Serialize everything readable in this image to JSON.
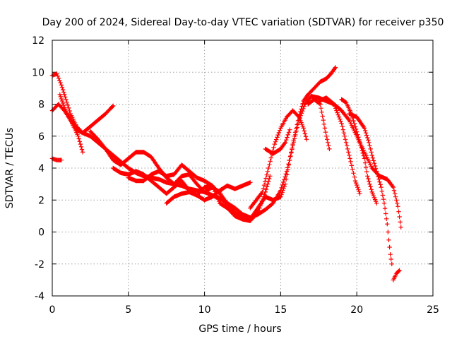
{
  "chart_data": {
    "type": "scatter",
    "title": "Day 200 of 2024, Sidereal Day-to-day VTEC variation (SDTVAR) for receiver p350",
    "xlabel": "GPS time / hours",
    "ylabel": "SDTVAR / TECUs",
    "xlim": [
      0,
      25
    ],
    "ylim": [
      -4,
      12
    ],
    "xticks": [
      "0",
      "5",
      "10",
      "15",
      "20",
      "25"
    ],
    "yticks": [
      "-4",
      "-2",
      "0",
      "2",
      "4",
      "6",
      "8",
      "10",
      "12"
    ],
    "grid": true,
    "marker": "plus",
    "color": "#ff0000",
    "series": [
      {
        "name": "track-a",
        "points": [
          [
            0.0,
            9.8
          ],
          [
            0.3,
            9.9
          ],
          [
            0.6,
            9.2
          ],
          [
            0.9,
            8.3
          ],
          [
            1.2,
            7.4
          ],
          [
            1.6,
            6.6
          ],
          [
            2.0,
            6.2
          ],
          [
            2.5,
            6.0
          ],
          [
            3.0,
            5.6
          ],
          [
            3.5,
            5.2
          ],
          [
            4.0,
            4.8
          ],
          [
            4.5,
            4.4
          ],
          [
            5.0,
            4.0
          ],
          [
            5.5,
            3.7
          ],
          [
            6.0,
            3.5
          ],
          [
            6.5,
            3.4
          ],
          [
            7.0,
            3.3
          ],
          [
            7.5,
            3.1
          ],
          [
            8.0,
            3.0
          ],
          [
            8.5,
            2.9
          ],
          [
            9.0,
            2.7
          ],
          [
            9.5,
            2.6
          ],
          [
            10.0,
            2.5
          ],
          [
            10.5,
            2.3
          ],
          [
            11.0,
            2.1
          ],
          [
            11.5,
            1.8
          ],
          [
            12.0,
            1.5
          ],
          [
            12.5,
            1.1
          ],
          [
            13.0,
            0.9
          ],
          [
            13.5,
            1.1
          ],
          [
            14.0,
            1.4
          ],
          [
            14.5,
            1.8
          ],
          [
            15.0,
            2.6
          ],
          [
            15.4,
            3.8
          ],
          [
            15.8,
            5.4
          ],
          [
            16.2,
            7.0
          ],
          [
            16.6,
            8.0
          ],
          [
            17.0,
            8.5
          ],
          [
            17.5,
            8.4
          ],
          [
            18.0,
            8.2
          ],
          [
            18.5,
            8.0
          ],
          [
            19.0,
            7.6
          ],
          [
            19.5,
            7.0
          ],
          [
            20.0,
            6.0
          ],
          [
            20.5,
            5.0
          ],
          [
            21.0,
            4.0
          ],
          [
            21.5,
            3.5
          ],
          [
            22.0,
            3.3
          ],
          [
            22.4,
            2.8
          ],
          [
            22.7,
            1.6
          ],
          [
            22.9,
            0.3
          ]
        ]
      },
      {
        "name": "track-b",
        "points": [
          [
            0.0,
            7.6
          ],
          [
            0.4,
            8.0
          ],
          [
            0.8,
            7.6
          ],
          [
            1.2,
            7.0
          ],
          [
            1.6,
            6.4
          ],
          [
            2.0,
            6.2
          ],
          [
            2.5,
            6.6
          ],
          [
            3.0,
            7.0
          ],
          [
            3.5,
            7.4
          ],
          [
            3.8,
            7.7
          ],
          [
            4.0,
            7.9
          ]
        ]
      },
      {
        "name": "track-c",
        "points": [
          [
            0.5,
            8.6
          ],
          [
            0.8,
            7.8
          ],
          [
            1.2,
            7.0
          ],
          [
            1.7,
            6.0
          ],
          [
            2.0,
            5.0
          ]
        ]
      },
      {
        "name": "track-d",
        "points": [
          [
            0.0,
            4.6
          ],
          [
            0.3,
            4.5
          ],
          [
            0.6,
            4.5
          ]
        ]
      },
      {
        "name": "track-e",
        "points": [
          [
            2.5,
            6.3
          ],
          [
            3.0,
            5.8
          ],
          [
            3.5,
            5.2
          ],
          [
            4.0,
            4.5
          ],
          [
            4.5,
            4.2
          ],
          [
            5.0,
            4.6
          ],
          [
            5.5,
            5.0
          ],
          [
            6.0,
            5.0
          ],
          [
            6.5,
            4.7
          ],
          [
            7.0,
            4.0
          ],
          [
            7.5,
            3.4
          ],
          [
            8.0,
            3.0
          ],
          [
            8.5,
            3.5
          ],
          [
            9.0,
            3.6
          ],
          [
            9.5,
            3.0
          ],
          [
            10.0,
            2.5
          ],
          [
            10.5,
            2.8
          ],
          [
            11.0,
            2.5
          ],
          [
            11.5,
            1.5
          ],
          [
            12.0,
            1.0
          ],
          [
            12.5,
            0.8
          ],
          [
            13.0,
            0.7
          ],
          [
            13.5,
            1.2
          ],
          [
            14.0,
            2.5
          ],
          [
            14.3,
            3.5
          ]
        ]
      },
      {
        "name": "track-f",
        "points": [
          [
            4.0,
            4.0
          ],
          [
            4.5,
            3.7
          ],
          [
            5.0,
            3.6
          ],
          [
            5.5,
            3.8
          ],
          [
            6.0,
            3.6
          ],
          [
            6.5,
            3.2
          ],
          [
            7.0,
            2.8
          ],
          [
            7.5,
            2.4
          ],
          [
            8.0,
            2.8
          ],
          [
            8.5,
            3.2
          ],
          [
            9.0,
            2.6
          ],
          [
            9.5,
            2.3
          ],
          [
            10.0,
            2.0
          ],
          [
            10.5,
            2.2
          ],
          [
            11.0,
            2.6
          ],
          [
            11.5,
            2.9
          ],
          [
            12.0,
            2.7
          ],
          [
            12.5,
            2.9
          ],
          [
            13.0,
            3.1
          ]
        ]
      },
      {
        "name": "track-g",
        "points": [
          [
            5.0,
            3.4
          ],
          [
            5.5,
            3.2
          ],
          [
            6.0,
            3.2
          ],
          [
            6.5,
            3.6
          ],
          [
            7.0,
            3.8
          ],
          [
            7.5,
            3.5
          ],
          [
            8.0,
            3.6
          ],
          [
            8.5,
            4.2
          ],
          [
            9.0,
            3.8
          ],
          [
            9.5,
            3.4
          ],
          [
            10.0,
            3.2
          ],
          [
            10.5,
            2.9
          ],
          [
            11.0,
            2.4
          ],
          [
            11.5,
            1.8
          ],
          [
            12.0,
            1.2
          ],
          [
            12.5,
            0.8
          ],
          [
            13.0,
            0.8
          ],
          [
            13.5,
            1.5
          ],
          [
            14.0,
            2.2
          ],
          [
            14.5,
            2.0
          ],
          [
            15.0,
            2.2
          ],
          [
            15.3,
            3.0
          ],
          [
            15.6,
            4.5
          ],
          [
            15.9,
            6.0
          ],
          [
            16.2,
            7.2
          ],
          [
            16.5,
            8.2
          ],
          [
            16.8,
            8.6
          ],
          [
            17.2,
            9.0
          ],
          [
            17.6,
            9.4
          ],
          [
            18.0,
            9.6
          ],
          [
            18.3,
            9.9
          ],
          [
            18.6,
            10.3
          ]
        ]
      },
      {
        "name": "track-h",
        "points": [
          [
            7.5,
            1.8
          ],
          [
            8.0,
            2.2
          ],
          [
            8.5,
            2.4
          ],
          [
            9.0,
            2.5
          ],
          [
            9.5,
            2.3
          ],
          [
            10.0,
            2.8
          ],
          [
            10.5,
            2.9
          ],
          [
            11.0,
            1.8
          ],
          [
            11.5,
            1.5
          ],
          [
            12.0,
            1.2
          ],
          [
            12.5,
            0.9
          ]
        ]
      },
      {
        "name": "track-i",
        "points": [
          [
            13.0,
            1.5
          ],
          [
            13.4,
            2.0
          ],
          [
            13.8,
            2.5
          ],
          [
            14.2,
            4.0
          ],
          [
            14.6,
            5.5
          ],
          [
            15.0,
            6.5
          ],
          [
            15.4,
            7.2
          ],
          [
            15.8,
            7.6
          ],
          [
            16.2,
            7.2
          ],
          [
            16.5,
            6.5
          ],
          [
            16.7,
            5.8
          ]
        ]
      },
      {
        "name": "track-j",
        "points": [
          [
            14.0,
            5.2
          ],
          [
            14.5,
            4.9
          ],
          [
            15.0,
            5.2
          ],
          [
            15.3,
            5.6
          ],
          [
            15.6,
            6.4
          ]
        ]
      },
      {
        "name": "track-k",
        "points": [
          [
            16.8,
            8.0
          ],
          [
            17.2,
            8.3
          ],
          [
            17.6,
            8.0
          ],
          [
            17.8,
            7.0
          ],
          [
            18.0,
            6.0
          ],
          [
            18.2,
            5.2
          ]
        ]
      },
      {
        "name": "track-l",
        "points": [
          [
            17.5,
            8.2
          ],
          [
            18.0,
            8.4
          ],
          [
            18.5,
            8.0
          ],
          [
            19.0,
            6.8
          ],
          [
            19.3,
            5.6
          ],
          [
            19.6,
            4.4
          ],
          [
            19.9,
            3.2
          ],
          [
            20.2,
            2.4
          ]
        ]
      },
      {
        "name": "track-m",
        "points": [
          [
            19.0,
            8.3
          ],
          [
            19.3,
            8.1
          ],
          [
            19.6,
            7.5
          ],
          [
            19.9,
            6.6
          ],
          [
            20.2,
            5.6
          ],
          [
            20.5,
            4.6
          ],
          [
            20.7,
            3.5
          ],
          [
            21.0,
            2.5
          ],
          [
            21.3,
            1.8
          ]
        ]
      },
      {
        "name": "track-n",
        "points": [
          [
            19.5,
            7.4
          ],
          [
            20.0,
            7.2
          ],
          [
            20.5,
            6.5
          ],
          [
            20.8,
            5.6
          ],
          [
            21.0,
            4.8
          ],
          [
            21.3,
            3.8
          ],
          [
            21.6,
            2.8
          ],
          [
            21.8,
            1.8
          ],
          [
            22.0,
            0.5
          ],
          [
            22.1,
            -0.5
          ],
          [
            22.2,
            -1.4
          ],
          [
            22.3,
            -2.0
          ]
        ]
      },
      {
        "name": "track-o",
        "points": [
          [
            22.4,
            -3.0
          ],
          [
            22.6,
            -2.6
          ],
          [
            22.8,
            -2.4
          ]
        ]
      }
    ]
  }
}
